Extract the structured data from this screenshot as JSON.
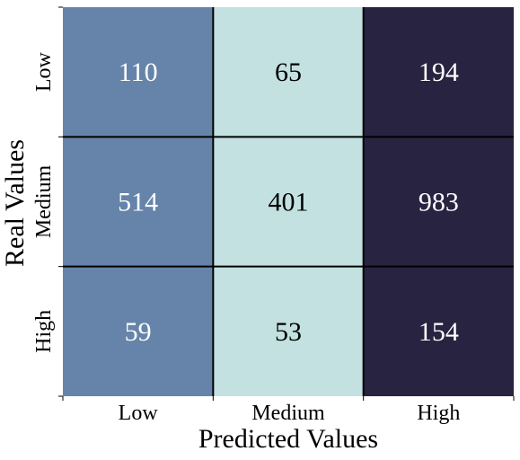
{
  "chart_data": {
    "type": "heatmap",
    "title": "",
    "xlabel": "Predicted Values",
    "ylabel": "Real Values",
    "x_categories": [
      "Low",
      "Medium",
      "High"
    ],
    "y_categories": [
      "Low",
      "Medium",
      "High"
    ],
    "values": [
      [
        110,
        65,
        194
      ],
      [
        514,
        401,
        983
      ],
      [
        59,
        53,
        154
      ]
    ],
    "column_colors": [
      "#6684a9",
      "#c2e1e0",
      "#272341"
    ],
    "column_text_colors": [
      "#ffffff",
      "#000000",
      "#ffffff"
    ],
    "grid_line_color": "#000000",
    "colorbar": false
  }
}
